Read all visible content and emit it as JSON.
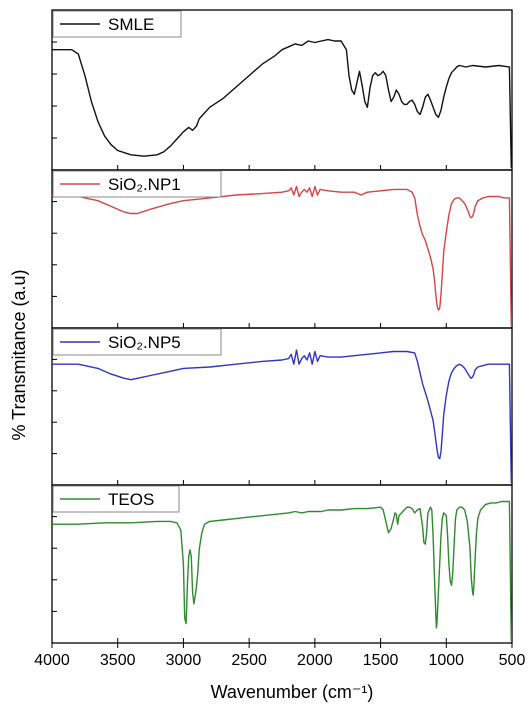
{
  "chart_data": {
    "type": "line",
    "title": "",
    "xlabel": "Wavenumber (cm⁻¹)",
    "ylabel": "% Transmitance (a.u)",
    "xlim": [
      4000,
      500
    ],
    "x_ticks": [
      4000,
      3500,
      3000,
      2500,
      2000,
      1500,
      1000,
      500
    ],
    "y_ticks_shown": false,
    "grid": false,
    "legend_placement": "top-left of each panel",
    "panels": [
      {
        "name": "SMLE",
        "color": "#111111",
        "series": {
          "x": [
            4000,
            3850,
            3800,
            3750,
            3700,
            3650,
            3600,
            3550,
            3500,
            3400,
            3300,
            3200,
            3150,
            3100,
            3050,
            3000,
            2960,
            2930,
            2900,
            2880,
            2850,
            2800,
            2700,
            2600,
            2500,
            2400,
            2300,
            2250,
            2200,
            2150,
            2100,
            2050,
            2000,
            1950,
            1900,
            1850,
            1800,
            1760,
            1740,
            1720,
            1700,
            1680,
            1660,
            1640,
            1620,
            1600,
            1580,
            1560,
            1540,
            1520,
            1500,
            1480,
            1460,
            1440,
            1420,
            1400,
            1380,
            1360,
            1340,
            1320,
            1300,
            1280,
            1260,
            1240,
            1220,
            1200,
            1180,
            1160,
            1140,
            1120,
            1100,
            1080,
            1060,
            1040,
            1020,
            1000,
            980,
            960,
            940,
            920,
            900,
            850,
            800,
            700,
            600,
            520
          ],
          "y": [
            0.78,
            0.78,
            0.75,
            0.6,
            0.42,
            0.28,
            0.18,
            0.12,
            0.08,
            0.05,
            0.04,
            0.05,
            0.07,
            0.11,
            0.16,
            0.21,
            0.24,
            0.22,
            0.25,
            0.3,
            0.33,
            0.38,
            0.44,
            0.52,
            0.6,
            0.68,
            0.74,
            0.78,
            0.8,
            0.82,
            0.81,
            0.84,
            0.83,
            0.84,
            0.85,
            0.84,
            0.84,
            0.78,
            0.6,
            0.5,
            0.47,
            0.55,
            0.63,
            0.53,
            0.42,
            0.38,
            0.52,
            0.6,
            0.62,
            0.6,
            0.61,
            0.63,
            0.6,
            0.5,
            0.42,
            0.45,
            0.5,
            0.47,
            0.42,
            0.4,
            0.4,
            0.42,
            0.43,
            0.4,
            0.35,
            0.33,
            0.38,
            0.45,
            0.47,
            0.43,
            0.38,
            0.33,
            0.31,
            0.36,
            0.45,
            0.52,
            0.58,
            0.62,
            0.64,
            0.66,
            0.67,
            0.66,
            0.67,
            0.66,
            0.67,
            0.66
          ]
        }
      },
      {
        "name": "SiO₂.NP1",
        "color": "#d64545",
        "series": {
          "x": [
            4000,
            3800,
            3650,
            3550,
            3450,
            3400,
            3350,
            3250,
            3100,
            3000,
            2800,
            2600,
            2400,
            2250,
            2200,
            2180,
            2160,
            2140,
            2120,
            2100,
            2080,
            2060,
            2040,
            2020,
            2000,
            1980,
            1960,
            1900,
            1800,
            1700,
            1650,
            1600,
            1500,
            1400,
            1300,
            1260,
            1240,
            1220,
            1200,
            1180,
            1160,
            1140,
            1120,
            1100,
            1090,
            1080,
            1070,
            1060,
            1050,
            1040,
            1030,
            1020,
            1000,
            980,
            960,
            940,
            920,
            900,
            880,
            860,
            840,
            820,
            810,
            800,
            790,
            780,
            760,
            720,
            680,
            640,
            600,
            560,
            520
          ],
          "y": [
            0.88,
            0.87,
            0.84,
            0.8,
            0.76,
            0.75,
            0.75,
            0.78,
            0.82,
            0.84,
            0.86,
            0.88,
            0.89,
            0.9,
            0.91,
            0.93,
            0.88,
            0.94,
            0.87,
            0.9,
            0.92,
            0.9,
            0.93,
            0.87,
            0.94,
            0.88,
            0.92,
            0.91,
            0.9,
            0.9,
            0.88,
            0.9,
            0.91,
            0.92,
            0.92,
            0.9,
            0.86,
            0.74,
            0.66,
            0.6,
            0.56,
            0.5,
            0.44,
            0.36,
            0.28,
            0.18,
            0.1,
            0.07,
            0.08,
            0.18,
            0.32,
            0.48,
            0.62,
            0.74,
            0.82,
            0.85,
            0.86,
            0.86,
            0.84,
            0.82,
            0.78,
            0.73,
            0.72,
            0.73,
            0.76,
            0.8,
            0.84,
            0.86,
            0.87,
            0.87,
            0.87,
            0.86,
            0.86
          ]
        }
      },
      {
        "name": "SiO₂.NP5",
        "color": "#2f35c2",
        "series": {
          "x": [
            4000,
            3800,
            3650,
            3550,
            3450,
            3400,
            3350,
            3250,
            3100,
            3000,
            2800,
            2600,
            2400,
            2250,
            2200,
            2180,
            2160,
            2140,
            2120,
            2100,
            2080,
            2060,
            2040,
            2020,
            2000,
            1980,
            1960,
            1900,
            1800,
            1700,
            1600,
            1500,
            1400,
            1300,
            1240,
            1220,
            1200,
            1180,
            1160,
            1140,
            1120,
            1100,
            1090,
            1080,
            1070,
            1060,
            1050,
            1040,
            1030,
            1020,
            1000,
            980,
            960,
            940,
            920,
            900,
            880,
            860,
            840,
            820,
            810,
            800,
            790,
            780,
            760,
            720,
            680,
            640,
            600,
            560,
            520
          ],
          "y": [
            0.8,
            0.8,
            0.77,
            0.73,
            0.7,
            0.69,
            0.7,
            0.72,
            0.75,
            0.77,
            0.78,
            0.8,
            0.82,
            0.83,
            0.84,
            0.87,
            0.8,
            0.9,
            0.8,
            0.84,
            0.86,
            0.83,
            0.88,
            0.8,
            0.89,
            0.82,
            0.86,
            0.85,
            0.85,
            0.86,
            0.87,
            0.88,
            0.89,
            0.89,
            0.88,
            0.82,
            0.74,
            0.66,
            0.6,
            0.54,
            0.47,
            0.4,
            0.33,
            0.26,
            0.19,
            0.14,
            0.13,
            0.18,
            0.3,
            0.44,
            0.58,
            0.68,
            0.74,
            0.77,
            0.79,
            0.8,
            0.79,
            0.77,
            0.74,
            0.71,
            0.7,
            0.71,
            0.73,
            0.76,
            0.78,
            0.79,
            0.8,
            0.8,
            0.8,
            0.8,
            0.8
          ]
        }
      },
      {
        "name": "TEOS",
        "color": "#2e8a2e",
        "series": {
          "x": [
            4000,
            3800,
            3600,
            3400,
            3200,
            3100,
            3050,
            3020,
            3000,
            2990,
            2980,
            2970,
            2960,
            2950,
            2940,
            2930,
            2920,
            2910,
            2900,
            2890,
            2880,
            2860,
            2840,
            2800,
            2700,
            2600,
            2500,
            2400,
            2300,
            2200,
            2150,
            2100,
            2050,
            2000,
            1950,
            1900,
            1800,
            1700,
            1600,
            1500,
            1480,
            1460,
            1440,
            1420,
            1400,
            1390,
            1380,
            1370,
            1360,
            1340,
            1320,
            1300,
            1280,
            1260,
            1240,
            1220,
            1200,
            1180,
            1170,
            1160,
            1150,
            1140,
            1120,
            1110,
            1100,
            1090,
            1080,
            1075,
            1070,
            1060,
            1050,
            1040,
            1030,
            1020,
            1000,
            990,
            980,
            970,
            960,
            950,
            940,
            930,
            920,
            900,
            880,
            860,
            840,
            820,
            810,
            800,
            795,
            790,
            780,
            770,
            760,
            740,
            720,
            700,
            660,
            620,
            580,
            540,
            520
          ],
          "y": [
            0.78,
            0.78,
            0.79,
            0.79,
            0.8,
            0.8,
            0.79,
            0.74,
            0.5,
            0.12,
            0.08,
            0.35,
            0.55,
            0.6,
            0.55,
            0.3,
            0.22,
            0.28,
            0.35,
            0.45,
            0.6,
            0.72,
            0.78,
            0.8,
            0.81,
            0.82,
            0.83,
            0.84,
            0.85,
            0.86,
            0.87,
            0.86,
            0.87,
            0.87,
            0.87,
            0.88,
            0.88,
            0.89,
            0.89,
            0.9,
            0.88,
            0.8,
            0.72,
            0.75,
            0.82,
            0.86,
            0.85,
            0.78,
            0.84,
            0.86,
            0.88,
            0.9,
            0.9,
            0.89,
            0.86,
            0.88,
            0.89,
            0.76,
            0.65,
            0.64,
            0.72,
            0.86,
            0.9,
            0.88,
            0.7,
            0.4,
            0.15,
            0.05,
            0.1,
            0.3,
            0.5,
            0.7,
            0.82,
            0.86,
            0.84,
            0.7,
            0.5,
            0.38,
            0.35,
            0.45,
            0.65,
            0.82,
            0.88,
            0.9,
            0.9,
            0.88,
            0.8,
            0.62,
            0.4,
            0.3,
            0.28,
            0.35,
            0.55,
            0.72,
            0.82,
            0.88,
            0.9,
            0.92,
            0.93,
            0.93,
            0.94,
            0.94,
            0.94
          ]
        }
      }
    ]
  }
}
